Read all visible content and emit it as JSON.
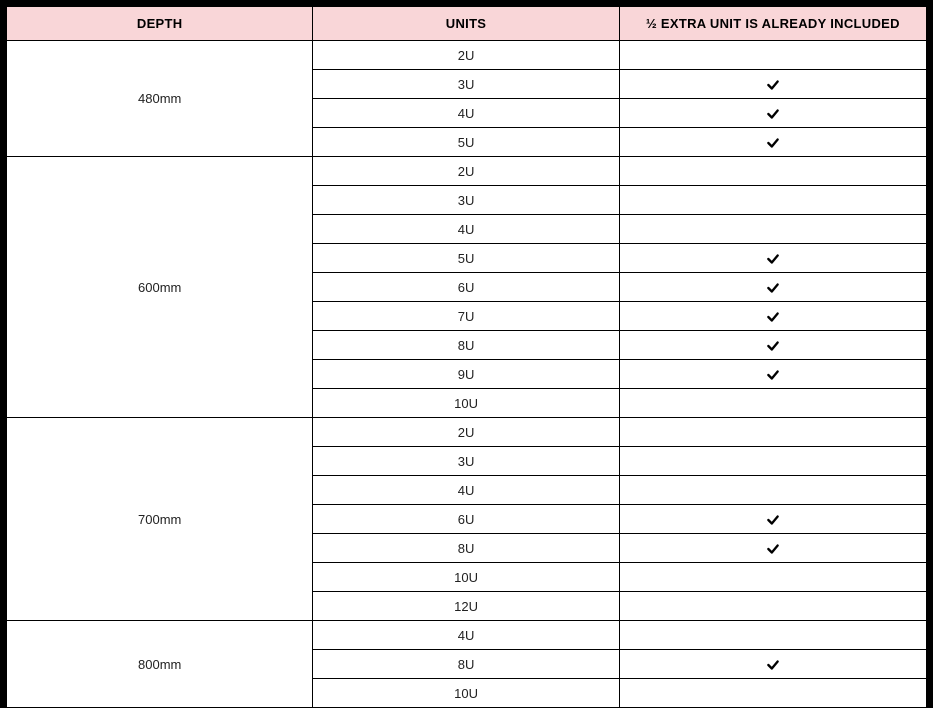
{
  "table": {
    "columns": [
      "DEPTH",
      "UNITS",
      "½ EXTRA UNIT IS ALREADY INCLUDED"
    ],
    "column_widths": [
      "33.3%",
      "33.3%",
      "33.4%"
    ],
    "header_bg": "#f9d6d8",
    "header_fontsize": 13,
    "header_fontweight": "bold",
    "cell_fontsize": 13,
    "border_color": "#000000",
    "background_color": "#ffffff",
    "check_color": "#000000",
    "groups": [
      {
        "depth": "480mm",
        "rows": [
          {
            "units": "2U",
            "included": false
          },
          {
            "units": "3U",
            "included": true
          },
          {
            "units": "4U",
            "included": true
          },
          {
            "units": "5U",
            "included": true
          }
        ]
      },
      {
        "depth": "600mm",
        "rows": [
          {
            "units": "2U",
            "included": false
          },
          {
            "units": "3U",
            "included": false
          },
          {
            "units": "4U",
            "included": false
          },
          {
            "units": "5U",
            "included": true
          },
          {
            "units": "6U",
            "included": true
          },
          {
            "units": "7U",
            "included": true
          },
          {
            "units": "8U",
            "included": true
          },
          {
            "units": "9U",
            "included": true
          },
          {
            "units": "10U",
            "included": false
          }
        ]
      },
      {
        "depth": "700mm",
        "rows": [
          {
            "units": "2U",
            "included": false
          },
          {
            "units": "3U",
            "included": false
          },
          {
            "units": "4U",
            "included": false
          },
          {
            "units": "6U",
            "included": true
          },
          {
            "units": "8U",
            "included": true
          },
          {
            "units": "10U",
            "included": false
          },
          {
            "units": "12U",
            "included": false
          }
        ]
      },
      {
        "depth": "800mm",
        "rows": [
          {
            "units": "4U",
            "included": false
          },
          {
            "units": "8U",
            "included": true
          },
          {
            "units": "10U",
            "included": false
          }
        ]
      }
    ]
  }
}
